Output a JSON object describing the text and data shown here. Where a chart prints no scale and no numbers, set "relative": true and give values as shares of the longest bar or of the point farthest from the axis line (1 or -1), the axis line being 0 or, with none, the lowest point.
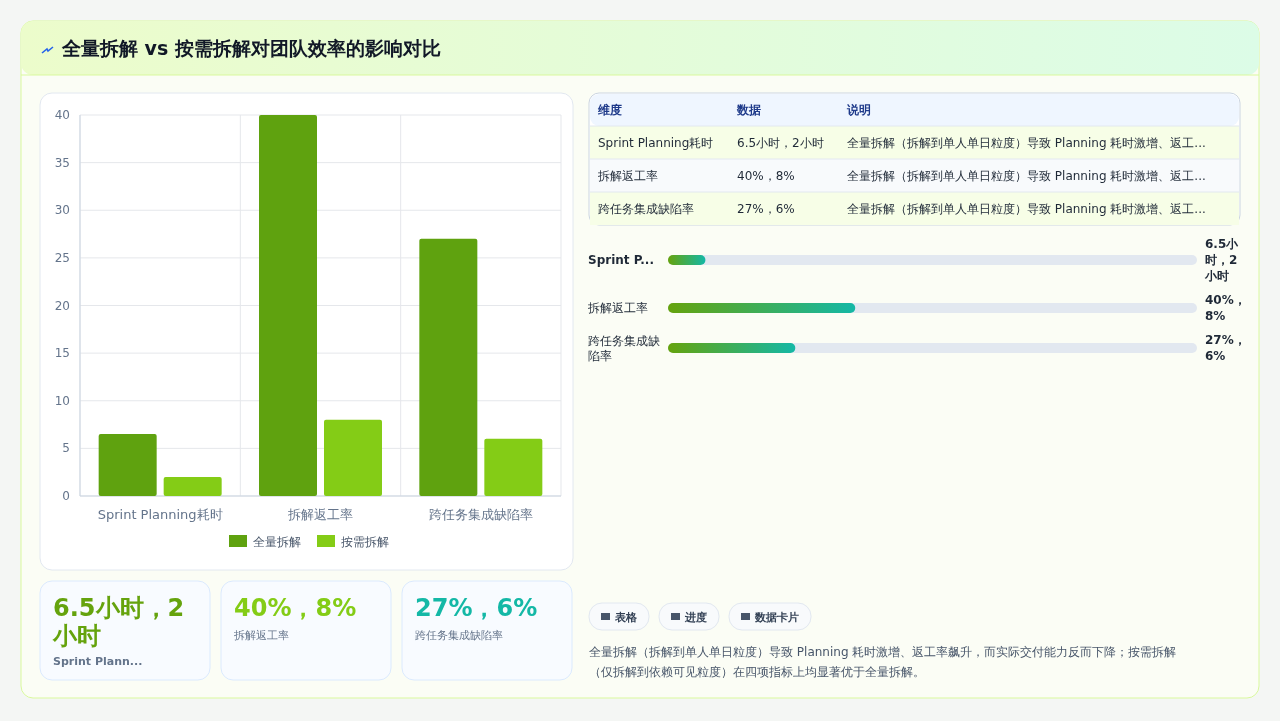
{
  "chart_data": [
    {
      "type": "bar",
      "title": "全量拆解 vs 按需拆解对团队效率的影响对比",
      "categories": [
        "Sprint Planning耗时",
        "拆解返工率",
        "跨任务集成缺陷率"
      ],
      "series": [
        {
          "name": "全量拆解",
          "color": "#5fa20f",
          "values": [
            6.5,
            40,
            27
          ]
        },
        {
          "name": "按需拆解",
          "color": "#84cc16",
          "values": [
            2,
            8,
            6
          ]
        }
      ],
      "ylim": [
        0,
        40
      ],
      "yticks": [
        0,
        5,
        10,
        15,
        20,
        25,
        30,
        35,
        40
      ],
      "grid": true,
      "legend": "bottom"
    },
    {
      "type": "bar",
      "orientation": "horizontal",
      "relative": true,
      "categories": [
        "Sprint P...",
        "拆解返工率",
        "跨任务集成缺陷率"
      ],
      "values": [
        0.2,
        1,
        0.68
      ],
      "color": "#14b8a6",
      "annotations": [
        "6.5小时，2小时",
        "40%，8%",
        "27%，6%"
      ]
    },
    {
      "type": "other",
      "annotations": [
        "维度",
        "数据",
        "说明",
        "Sprint Planning耗时",
        "6.5小时，2小时",
        "全量拆解（拆解到单人单日粒度）导致 Planning 耗时激增、返工...",
        "拆解返工率",
        "40%，8%",
        "全量拆解（拆解到单人单日粒度）导致 Planning 耗时激增、返工...",
        "跨任务集成缺陷率",
        "27%，6%",
        "全量拆解（拆解到单人单日粒度）导致 Planning 耗时激增、返工..."
      ]
    },
    {
      "type": "other",
      "annotations": [
        "6.5小时，2小时",
        "Sprint Plann...",
        "40%，8%",
        "拆解返工率",
        "27%，6%",
        "跨任务集成缺陷率"
      ],
      "colors": [
        "#65a30d",
        "#84cc16",
        "#14b8a6"
      ]
    },
    {
      "type": "other",
      "annotations": [
        "表格",
        "进度",
        "数据卡片",
        "全量拆解（拆解到单人单日粒度）导致 Planning 耗时激增、返工率飙升，而实际交付能力反而下降；按需拆解（仅拆解到依赖可见粒度）在四项指标上均显著优于全量拆解。"
      ]
    }
  ]
}
